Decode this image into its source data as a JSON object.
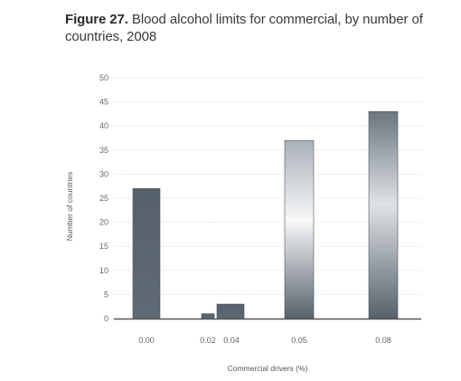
{
  "figure": {
    "label": "Figure 27.",
    "title_rest": " Blood alcohol limits for commercial, by number of",
    "title_line2": "countries, 2008"
  },
  "chart_data": {
    "type": "bar",
    "categories": [
      "0.00",
      "0.02",
      "0.04",
      "0.05",
      "0.08"
    ],
    "values": [
      27,
      1,
      3,
      37,
      43
    ],
    "xlabel": "Commercial drivers (%)",
    "ylabel": "Number of countries",
    "ylim": [
      0,
      50
    ],
    "yticks": [
      0,
      5,
      10,
      15,
      20,
      25,
      30,
      35,
      40,
      45,
      50
    ],
    "grid": true,
    "legend": "none",
    "colors": {
      "bar_dark": "#5b6670",
      "bar_light": "#ffffff",
      "bar_edge": "#4a545c",
      "grid": "#d5d5d5",
      "axis": "#555555"
    }
  }
}
